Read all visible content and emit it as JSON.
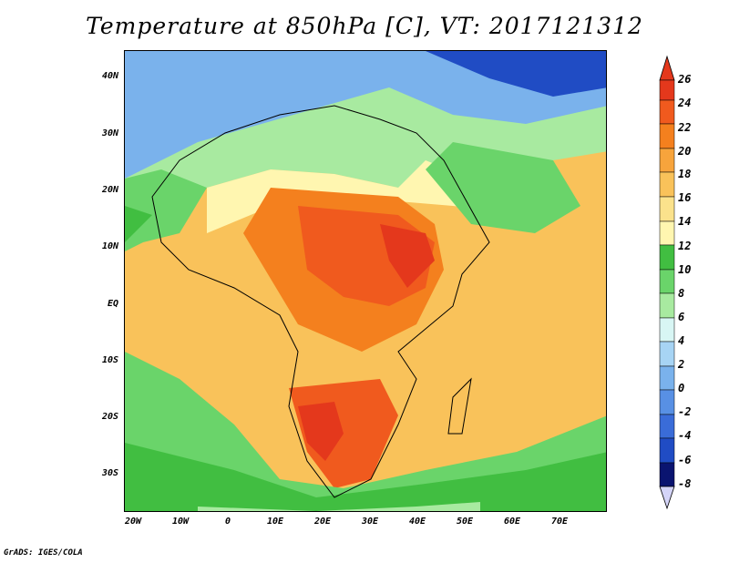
{
  "title": "Temperature at 850hPa [C], VT: 2017121312",
  "credit": "GrADS: IGES/COLA",
  "lat_labels": [
    "40N",
    "30N",
    "20N",
    "10N",
    "EQ",
    "10S",
    "20S",
    "30S"
  ],
  "lon_labels": [
    "20W",
    "10W",
    "0",
    "10E",
    "20E",
    "30E",
    "40E",
    "50E",
    "60E",
    "70E"
  ],
  "colorbar": {
    "labels": [
      "26",
      "24",
      "22",
      "20",
      "18",
      "16",
      "14",
      "12",
      "10",
      "8",
      "6",
      "4",
      "2",
      "0",
      "-2",
      "-4",
      "-6",
      "-8"
    ],
    "colors": [
      "#e4381c",
      "#f05a1e",
      "#f4801e",
      "#f7a43c",
      "#f9c25a",
      "#fbe28c",
      "#fff6b0",
      "#41be41",
      "#6ad46a",
      "#a8eaa0",
      "#d8f6f4",
      "#a7d4f4",
      "#7ab2ec",
      "#5890e4",
      "#3a6cd8",
      "#204cc4",
      "#1032a4",
      "#0a1470"
    ],
    "top_arrow_color": "#e4381c",
    "bottom_arrow_color": "#d4d4f8"
  }
}
